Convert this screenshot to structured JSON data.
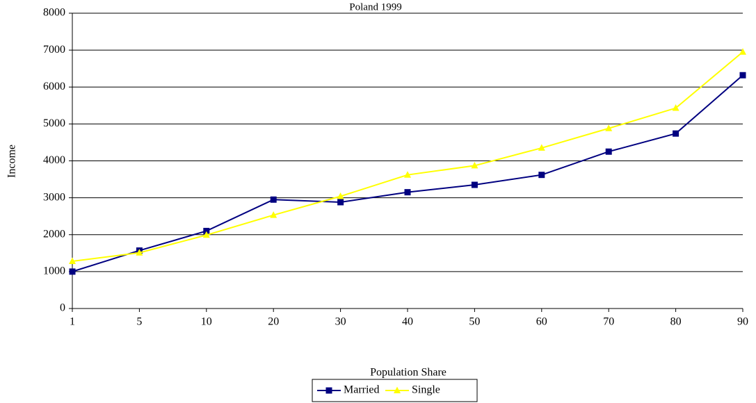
{
  "chart_data": {
    "type": "line",
    "title": "Poland 1999",
    "x_label": "Population Share",
    "y_label": "Income",
    "categories": [
      "1",
      "5",
      "10",
      "20",
      "30",
      "40",
      "50",
      "60",
      "70",
      "80",
      "90"
    ],
    "series": [
      {
        "name": "Married",
        "color": "#000080",
        "marker": "square",
        "values": [
          1000,
          1570,
          2100,
          2950,
          2880,
          3150,
          3350,
          3620,
          4250,
          4740,
          6320
        ]
      },
      {
        "name": "Single",
        "color": "#ffff00",
        "marker": "triangle",
        "values": [
          1280,
          1510,
          1990,
          2530,
          3040,
          3620,
          3870,
          4350,
          4880,
          5430,
          6950
        ]
      }
    ],
    "ylim": [
      0,
      8000
    ],
    "yticks": [
      0,
      1000,
      2000,
      3000,
      4000,
      5000,
      6000,
      7000,
      8000
    ],
    "grid": true,
    "legend": "bottom"
  }
}
